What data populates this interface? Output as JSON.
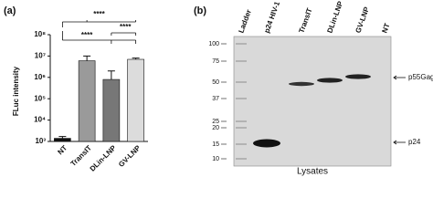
{
  "chart_data": {
    "type": "bar",
    "panel_label": "(a)",
    "y_label": "FLuc intensity",
    "y_log": true,
    "categories": [
      "NT",
      "TransIT",
      "DLin-LNP",
      "GV-LNP"
    ],
    "values": [
      1400,
      6000000,
      800000,
      7000000
    ],
    "errors": [
      300,
      4000000,
      1200000,
      1000000
    ],
    "colors": [
      "#111111",
      "#9a9a9a",
      "#777777",
      "#dcdcdc"
    ],
    "ylim": [
      1000,
      100000000
    ],
    "yticks": [
      {
        "value": 1000,
        "label": "10³"
      },
      {
        "value": 10000,
        "label": "10⁴"
      },
      {
        "value": 100000,
        "label": "10⁵"
      },
      {
        "value": 1000000,
        "label": "10⁶"
      },
      {
        "value": 10000000,
        "label": "10⁷"
      },
      {
        "value": 100000000,
        "label": "10⁸"
      }
    ],
    "annotations": [
      "****",
      "****",
      "****"
    ]
  },
  "blot": {
    "panel_label": "(b)",
    "lanes": [
      "Ladder",
      "p24 HIV-1",
      "TransIT",
      "DLin-LNP",
      "GV-LNP",
      "NT"
    ],
    "markers": [
      100,
      75,
      50,
      37,
      25,
      20,
      15,
      10
    ],
    "bands": [
      "p55Gag",
      "p24"
    ],
    "x_label": "Lysates"
  }
}
